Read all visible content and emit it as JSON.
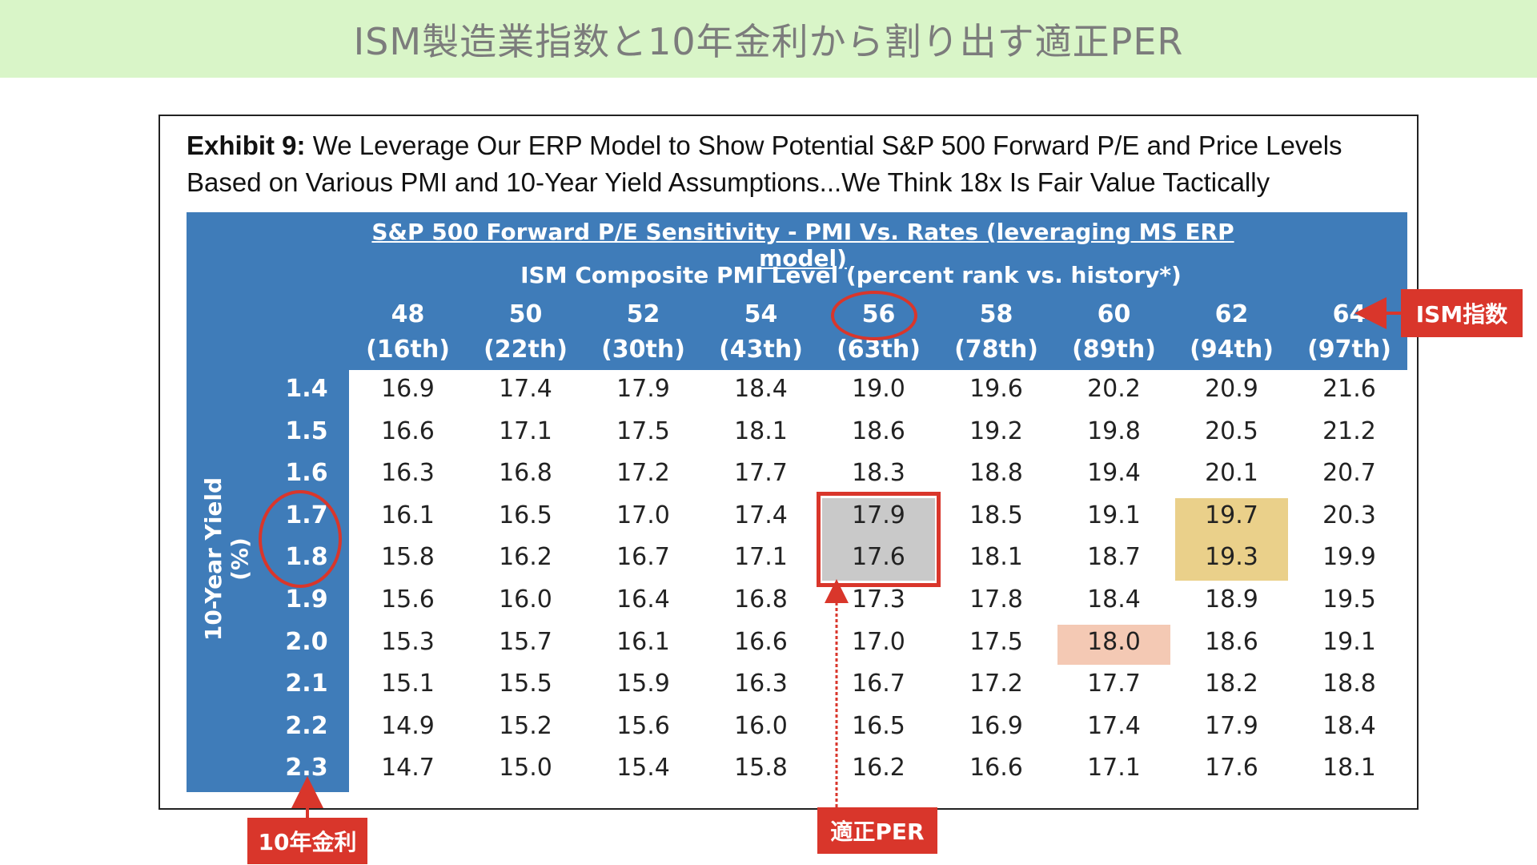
{
  "banner": {
    "title": "ISM製造業指数と10年金利から割り出す適正PER"
  },
  "exhibit": {
    "label": "Exhibit 9:",
    "caption_line1": "We Leverage Our ERP Model to Show Potential S&P 500 Forward P/E and Price Levels",
    "caption_line2": "Based on Various PMI and 10-Year Yield Assumptions...We Think 18x Is Fair Value Tactically"
  },
  "annotations": {
    "ism_tag": "ISM指数",
    "yield_tag": "10年金利",
    "per_tag": "適正PER",
    "colors": {
      "red": "#d9362b",
      "banner": "#d9f5c8",
      "table_blue": "#3f7cb9",
      "gray": "#c9c9c9",
      "yellow": "#ead08a",
      "peach": "#f4c9b4"
    }
  },
  "chart_data": {
    "type": "table",
    "title": "S&P 500 Forward P/E Sensitivity - PMI Vs. Rates (leveraging MS ERP model)",
    "column_axis_label": "ISM Composite PMI Level (percent rank vs. history*)",
    "row_axis_label": "10-Year Yield (%)",
    "columns": [
      {
        "pmi": "48",
        "rank": "(16th)"
      },
      {
        "pmi": "50",
        "rank": "(22th)"
      },
      {
        "pmi": "52",
        "rank": "(30th)"
      },
      {
        "pmi": "54",
        "rank": "(43th)"
      },
      {
        "pmi": "56",
        "rank": "(63th)"
      },
      {
        "pmi": "58",
        "rank": "(78th)"
      },
      {
        "pmi": "60",
        "rank": "(89th)"
      },
      {
        "pmi": "62",
        "rank": "(94th)"
      },
      {
        "pmi": "64",
        "rank": "(97th)"
      }
    ],
    "rows": [
      "1.4",
      "1.5",
      "1.6",
      "1.7",
      "1.8",
      "1.9",
      "2.0",
      "2.1",
      "2.2",
      "2.3"
    ],
    "values": [
      [
        "16.9",
        "17.4",
        "17.9",
        "18.4",
        "19.0",
        "19.6",
        "20.2",
        "20.9",
        "21.6"
      ],
      [
        "16.6",
        "17.1",
        "17.5",
        "18.1",
        "18.6",
        "19.2",
        "19.8",
        "20.5",
        "21.2"
      ],
      [
        "16.3",
        "16.8",
        "17.2",
        "17.7",
        "18.3",
        "18.8",
        "19.4",
        "20.1",
        "20.7"
      ],
      [
        "16.1",
        "16.5",
        "17.0",
        "17.4",
        "17.9",
        "18.5",
        "19.1",
        "19.7",
        "20.3"
      ],
      [
        "15.8",
        "16.2",
        "16.7",
        "17.1",
        "17.6",
        "18.1",
        "18.7",
        "19.3",
        "19.9"
      ],
      [
        "15.6",
        "16.0",
        "16.4",
        "16.8",
        "17.3",
        "17.8",
        "18.4",
        "18.9",
        "19.5"
      ],
      [
        "15.3",
        "15.7",
        "16.1",
        "16.6",
        "17.0",
        "17.5",
        "18.0",
        "18.6",
        "19.1"
      ],
      [
        "15.1",
        "15.5",
        "15.9",
        "16.3",
        "16.7",
        "17.2",
        "17.7",
        "18.2",
        "18.8"
      ],
      [
        "14.9",
        "15.2",
        "15.6",
        "16.0",
        "16.5",
        "16.9",
        "17.4",
        "17.9",
        "18.4"
      ],
      [
        "14.7",
        "15.0",
        "15.4",
        "15.8",
        "16.2",
        "16.6",
        "17.1",
        "17.6",
        "18.1"
      ]
    ],
    "highlights": [
      {
        "color": "gray",
        "rows": [
          3,
          4
        ],
        "col": 4
      },
      {
        "color": "yellow",
        "rows": [
          3,
          4
        ],
        "col": 7
      },
      {
        "color": "peach",
        "rows": [
          6
        ],
        "col": 6
      }
    ]
  }
}
